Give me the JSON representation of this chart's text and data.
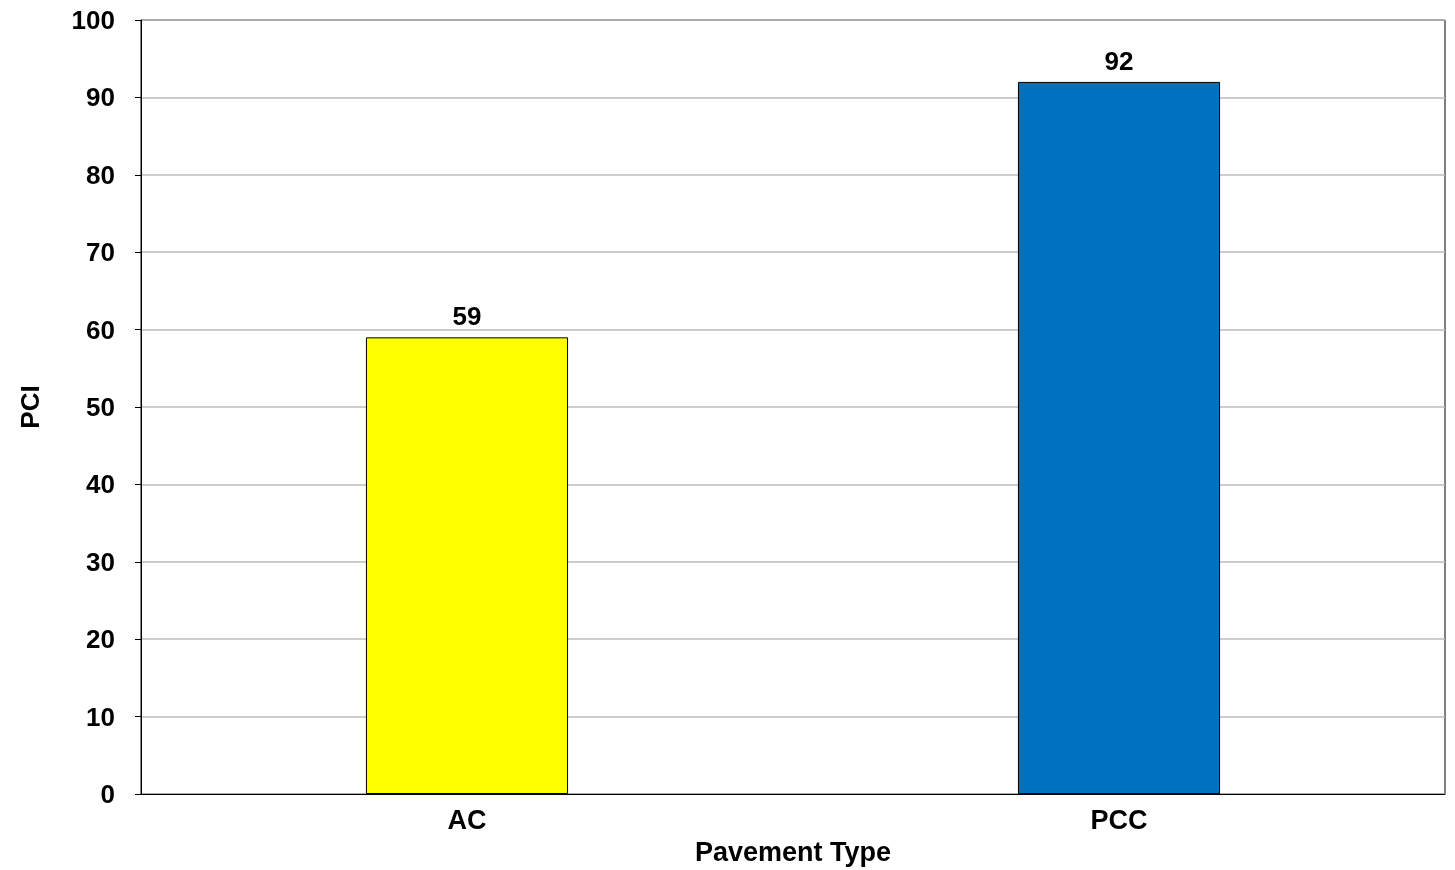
{
  "chart_data": {
    "type": "bar",
    "xlabel": "Pavement Type",
    "ylabel": "PCI",
    "categories": [
      "AC",
      "PCC"
    ],
    "values": [
      59,
      92
    ],
    "colors": [
      "#ffff00",
      "#0070c0"
    ],
    "ylim": [
      0,
      100
    ],
    "yticks": [
      0,
      10,
      20,
      30,
      40,
      50,
      60,
      70,
      80,
      90,
      100
    ],
    "grid": "y",
    "data_labels": true
  }
}
